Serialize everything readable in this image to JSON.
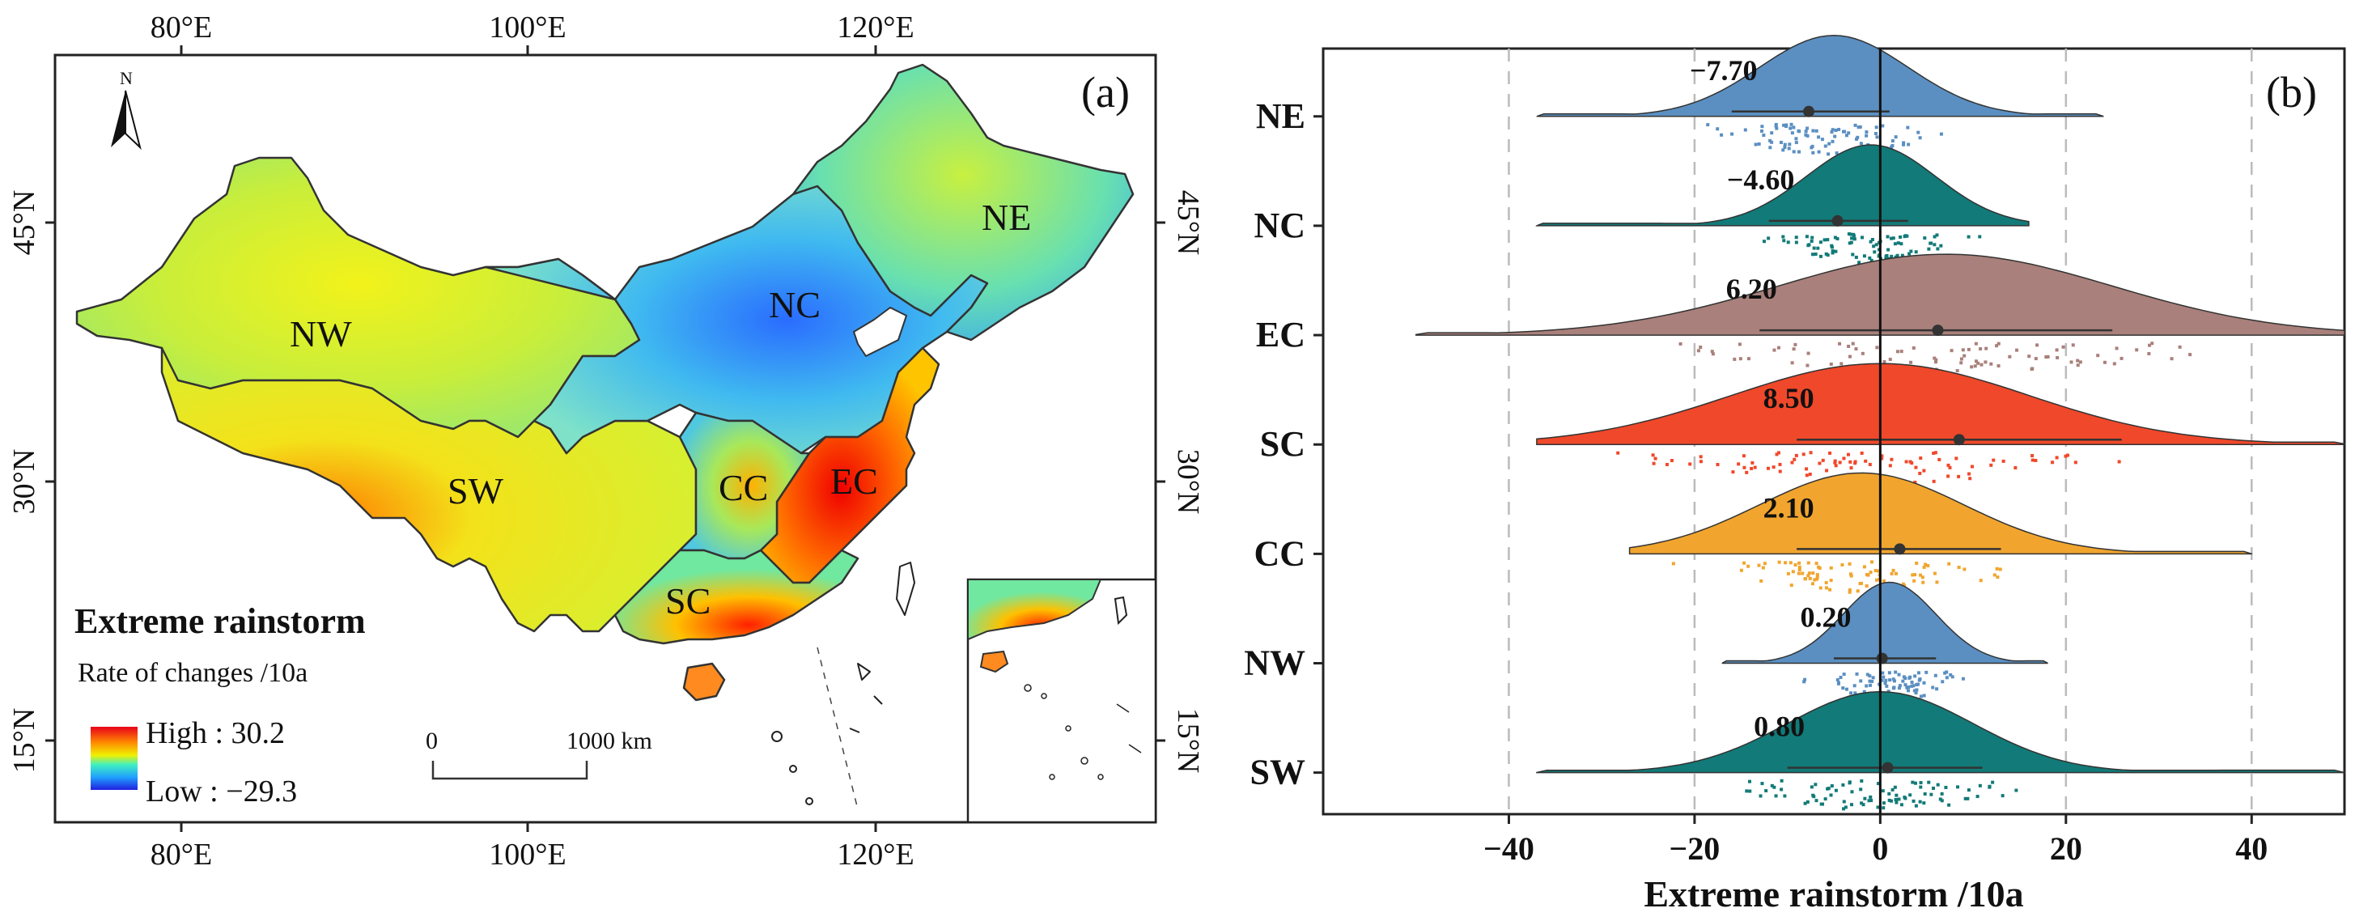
{
  "panel_a": {
    "label": "(a)",
    "top_lon_ticks": [
      "80°E",
      "100°E",
      "120°E"
    ],
    "bottom_lon_ticks": [
      "80°E",
      "100°E",
      "120°E"
    ],
    "left_lat_ticks": [
      "45°N",
      "30°N",
      "15°N"
    ],
    "right_lat_ticks": [
      "45°N",
      "30°N",
      "15°N"
    ],
    "north_label": "N",
    "region_labels": [
      "NW",
      "NC",
      "NE",
      "SW",
      "CC",
      "EC",
      "SC"
    ],
    "legend": {
      "title": "Extreme rainstorm",
      "subtitle": "Rate of changes /10a",
      "high": "High : 30.2",
      "low": "Low : −29.3"
    },
    "scalebar": {
      "start": "0",
      "end": "1000 km"
    },
    "colors": {
      "ocean": "#ffffff",
      "border": "#333333"
    }
  },
  "chart_data": {
    "type": "raincloud",
    "panel_label": "(b)",
    "xlabel": "Extreme rainstorm /10a",
    "xlim": [
      -60,
      50
    ],
    "xticks": [
      "−40",
      "−20",
      "0",
      "20",
      "40"
    ],
    "xtick_values": [
      -40,
      -20,
      0,
      20,
      40
    ],
    "grid": "dashed vertical at -40, -20, 20, 40",
    "series": [
      {
        "name": "NE",
        "label": "−7.70",
        "mean": -7.7,
        "range": [
          -37,
          24
        ],
        "mode": -5,
        "sd": 8,
        "ci": [
          -16,
          1
        ],
        "color": "#5b8fc1"
      },
      {
        "name": "NC",
        "label": "−4.60",
        "mean": -4.6,
        "range": [
          -37,
          16
        ],
        "mode": -1,
        "sd": 7,
        "ci": [
          -12,
          3
        ],
        "color": "#127a78"
      },
      {
        "name": "EC",
        "label": "6.20",
        "mean": 6.2,
        "range": [
          -50,
          50
        ],
        "mode": 7,
        "sd": 18,
        "ci": [
          -13,
          25
        ],
        "color": "#a9807b"
      },
      {
        "name": "SC",
        "label": "8.50",
        "mean": 8.5,
        "range": [
          -37,
          50
        ],
        "mode": 0,
        "sd": 16,
        "ci": [
          -9,
          26
        ],
        "color": "#f0482a"
      },
      {
        "name": "CC",
        "label": "2.10",
        "mean": 2.1,
        "range": [
          -27,
          40
        ],
        "mode": -2,
        "sd": 11,
        "ci": [
          -9,
          13
        ],
        "color": "#f1a52e"
      },
      {
        "name": "NW",
        "label": "0.20",
        "mean": 0.2,
        "range": [
          -17,
          18
        ],
        "mode": 1,
        "sd": 5,
        "ci": [
          -5,
          6
        ],
        "color": "#5b8fc1"
      },
      {
        "name": "SW",
        "label": "0.80",
        "mean": 0.8,
        "range": [
          -37,
          50
        ],
        "mode": 0,
        "sd": 10,
        "ci": [
          -10,
          11
        ],
        "color": "#127a78"
      }
    ]
  }
}
